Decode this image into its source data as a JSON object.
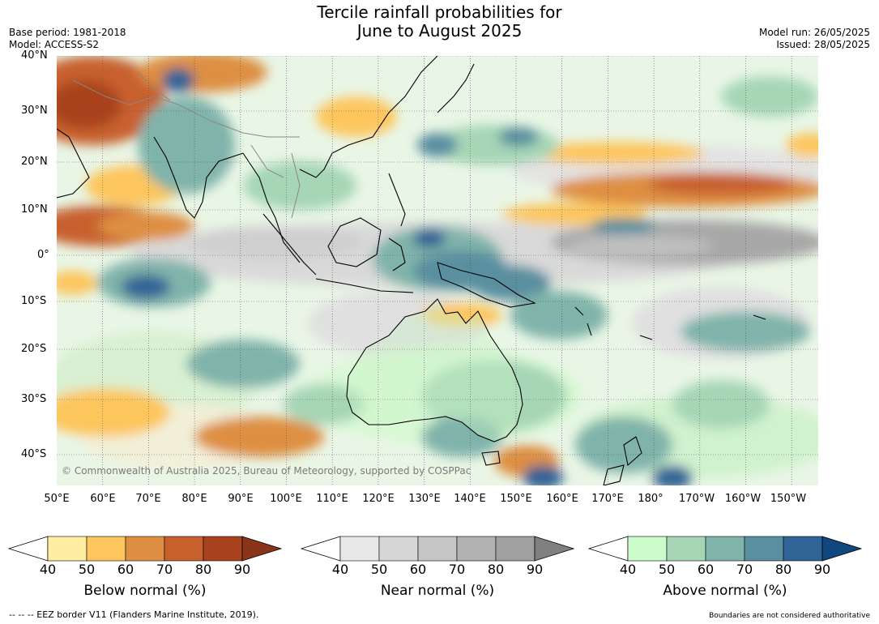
{
  "title_line1": "Tercile rainfall probabilities for",
  "title_line2": "June to August 2025",
  "meta_left": [
    "Base period: 1981-2018",
    "Model: ACCESS-S2"
  ],
  "meta_right": [
    "Model run: 26/05/2025",
    "Issued: 28/05/2025"
  ],
  "lat_labels": [
    "40°N",
    "30°N",
    "20°N",
    "10°N",
    "0°",
    "10°S",
    "20°S",
    "30°S",
    "40°S"
  ],
  "lon_labels": [
    "50°E",
    "60°E",
    "70°E",
    "80°E",
    "90°E",
    "100°E",
    "110°E",
    "120°E",
    "130°E",
    "140°E",
    "150°E",
    "160°E",
    "170°E",
    "180°",
    "170°W",
    "160°W",
    "150°W"
  ],
  "copyright": "© Commonwealth of Australia 2025, Bureau of Meteorology, supported by COSPPac",
  "colorbars": [
    {
      "title": "Below normal (%)",
      "ticks": [
        "40",
        "50",
        "60",
        "70",
        "80",
        "90"
      ],
      "colors": [
        "#ffeea1",
        "#fdc65d",
        "#de8f43",
        "#c8602d",
        "#a9431f"
      ],
      "arrow_color": "#8a3419"
    },
    {
      "title": "Near normal (%)",
      "ticks": [
        "40",
        "50",
        "60",
        "70",
        "80",
        "90"
      ],
      "colors": [
        "#e8e8e8",
        "#d6d6d6",
        "#c6c6c6",
        "#b2b2b2",
        "#a0a0a0"
      ],
      "arrow_color": "#808080"
    },
    {
      "title": "Above normal (%)",
      "ticks": [
        "40",
        "50",
        "60",
        "70",
        "80",
        "90"
      ],
      "colors": [
        "#ccfccc",
        "#a6d6b6",
        "#80b4aa",
        "#5a8fa0",
        "#306496"
      ],
      "arrow_color": "#11477f"
    }
  ],
  "footer_left": "--  --  -- EEZ border V11 (Flanders Marine Institute, 2019).",
  "footer_right": "Boundaries are not considered authoritative"
}
